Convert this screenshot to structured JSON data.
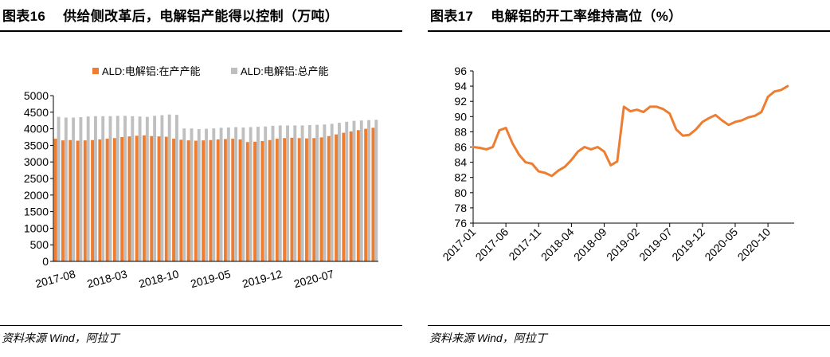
{
  "left": {
    "title_num": "图表16",
    "title_text": "供给侧改革后，电解铝产能得以控制（万吨）",
    "source": "资料来源 Wind，阿拉丁"
  },
  "right": {
    "title_num": "图表17",
    "title_text": "电解铝的开工率维持高位（%）",
    "source": "资料来源 Wind，阿拉丁"
  },
  "colors": {
    "orange": "#ED7D31",
    "gray": "#BFBFBF",
    "axis": "#000000"
  },
  "chart_data": [
    {
      "type": "bar",
      "title": "供给侧改革后，电解铝产能得以控制（万吨）",
      "legend_position": "top",
      "ylim": [
        0,
        5000
      ],
      "yticks": [
        0,
        500,
        1000,
        1500,
        2000,
        2500,
        3000,
        3500,
        4000,
        4500,
        5000
      ],
      "xtick_labels": [
        "2017-08",
        "2018-03",
        "2018-10",
        "2019-05",
        "2019-12",
        "2020-07"
      ],
      "xtick_every": 7,
      "series": [
        {
          "name": "ALD:电解铝:在产产能",
          "color": "#ED7D31",
          "values": [
            3700,
            3650,
            3660,
            3640,
            3650,
            3660,
            3680,
            3700,
            3720,
            3750,
            3770,
            3790,
            3800,
            3780,
            3770,
            3760,
            3700,
            3670,
            3650,
            3640,
            3650,
            3660,
            3680,
            3690,
            3700,
            3680,
            3600,
            3610,
            3630,
            3660,
            3700,
            3720,
            3730,
            3720,
            3710,
            3720,
            3740,
            3780,
            3830,
            3880,
            3920,
            3960,
            4000,
            4030
          ]
        },
        {
          "name": "ALD:电解铝:总产能",
          "color": "#BFBFBF",
          "values": [
            4360,
            4340,
            4340,
            4350,
            4370,
            4380,
            4380,
            4380,
            4390,
            4390,
            4380,
            4370,
            4360,
            4390,
            4410,
            4430,
            4420,
            4010,
            4010,
            3990,
            4000,
            4010,
            4030,
            4040,
            4050,
            4040,
            4050,
            4060,
            4070,
            4090,
            4100,
            4100,
            4100,
            4100,
            4110,
            4120,
            4130,
            4150,
            4180,
            4210,
            4240,
            4250,
            4260,
            4270
          ]
        }
      ]
    },
    {
      "type": "line",
      "title": "电解铝的开工率维持高位（%）",
      "ylim": [
        76,
        96
      ],
      "yticks": [
        76,
        78,
        80,
        82,
        84,
        86,
        88,
        90,
        92,
        94,
        96
      ],
      "xtick_labels": [
        "2017-01",
        "2017-06",
        "2017-11",
        "2018-04",
        "2018-09",
        "2019-02",
        "2019-07",
        "2019-12",
        "2020-05",
        "2020-10"
      ],
      "xtick_every": 5,
      "series": [
        {
          "name": "开工率",
          "color": "#ED7D31",
          "values": [
            86.0,
            85.9,
            85.7,
            86.0,
            88.2,
            88.5,
            86.5,
            85.0,
            84.0,
            83.8,
            82.8,
            82.6,
            82.2,
            82.9,
            83.4,
            84.3,
            85.4,
            86.0,
            85.7,
            86.0,
            85.4,
            83.6,
            84.1,
            91.3,
            90.7,
            90.9,
            90.6,
            91.3,
            91.3,
            91.0,
            90.4,
            88.3,
            87.5,
            87.6,
            88.3,
            89.3,
            89.8,
            90.2,
            89.5,
            88.9,
            89.3,
            89.5,
            89.9,
            90.1,
            90.6,
            92.6,
            93.3,
            93.5,
            94.0
          ]
        }
      ]
    }
  ]
}
